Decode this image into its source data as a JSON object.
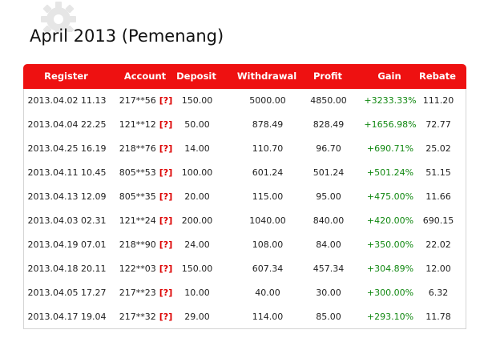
{
  "page": {
    "title": "April 2013 (Pemenang)"
  },
  "table": {
    "headers": [
      "Register",
      "Account",
      "Deposit",
      "Withdrawal",
      "Profit",
      "Gain",
      "Rebate"
    ],
    "help_marker": "[?]",
    "rows": [
      {
        "register": "2013.04.02 11.13",
        "account": "217**56",
        "deposit": "150.00",
        "withdrawal": "5000.00",
        "profit": "4850.00",
        "gain": "+3233.33%",
        "rebate": "111.20"
      },
      {
        "register": "2013.04.04 22.25",
        "account": "121**12",
        "deposit": "50.00",
        "withdrawal": "878.49",
        "profit": "828.49",
        "gain": "+1656.98%",
        "rebate": "72.77"
      },
      {
        "register": "2013.04.25 16.19",
        "account": "218**76",
        "deposit": "14.00",
        "withdrawal": "110.70",
        "profit": "96.70",
        "gain": "+690.71%",
        "rebate": "25.02"
      },
      {
        "register": "2013.04.11 10.45",
        "account": "805**53",
        "deposit": "100.00",
        "withdrawal": "601.24",
        "profit": "501.24",
        "gain": "+501.24%",
        "rebate": "51.15"
      },
      {
        "register": "2013.04.13 12.09",
        "account": "805**35",
        "deposit": "20.00",
        "withdrawal": "115.00",
        "profit": "95.00",
        "gain": "+475.00%",
        "rebate": "11.66"
      },
      {
        "register": "2013.04.03 02.31",
        "account": "121**24",
        "deposit": "200.00",
        "withdrawal": "1040.00",
        "profit": "840.00",
        "gain": "+420.00%",
        "rebate": "690.15"
      },
      {
        "register": "2013.04.19 07.01",
        "account": "218**90",
        "deposit": "24.00",
        "withdrawal": "108.00",
        "profit": "84.00",
        "gain": "+350.00%",
        "rebate": "22.02"
      },
      {
        "register": "2013.04.18 20.11",
        "account": "122**03",
        "deposit": "150.00",
        "withdrawal": "607.34",
        "profit": "457.34",
        "gain": "+304.89%",
        "rebate": "12.00"
      },
      {
        "register": "2013.04.05 17.27",
        "account": "217**23",
        "deposit": "10.00",
        "withdrawal": "40.00",
        "profit": "30.00",
        "gain": "+300.00%",
        "rebate": "6.32"
      },
      {
        "register": "2013.04.17 19.04",
        "account": "217**32",
        "deposit": "29.00",
        "withdrawal": "114.00",
        "profit": "85.00",
        "gain": "+293.10%",
        "rebate": "11.78"
      }
    ]
  },
  "colors": {
    "header_bg": "#ee1111",
    "gain": "#118811",
    "help_marker": "#dd0000"
  },
  "icons": {
    "decor": "gear-icon"
  }
}
